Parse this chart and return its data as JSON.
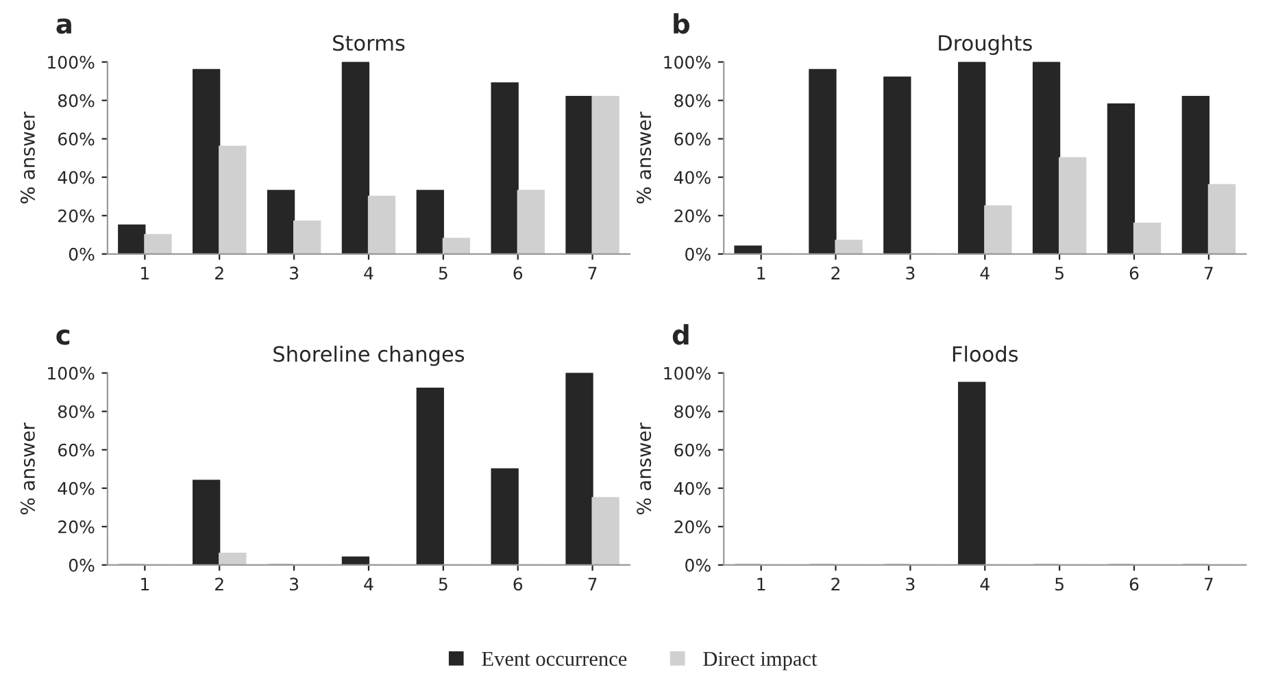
{
  "chart_data": [
    {
      "type": "bar",
      "title": "Storms",
      "ylabel": "% answer",
      "annotations": [
        "a"
      ],
      "categories": [
        "1",
        "2",
        "3",
        "4",
        "5",
        "6",
        "7"
      ],
      "series": [
        {
          "color": "#262626",
          "values": [
            15,
            96,
            33,
            100,
            33,
            89,
            82
          ]
        },
        {
          "color": "#d0d0d0",
          "values": [
            10,
            56,
            17,
            30,
            8,
            33,
            82
          ]
        }
      ],
      "ylim": [
        0,
        100
      ],
      "yticks": [
        {
          "value": 0,
          "label": "0%"
        },
        {
          "value": 20,
          "label": "20%"
        },
        {
          "value": 40,
          "label": "40%"
        },
        {
          "value": 60,
          "label": "60%"
        },
        {
          "value": 80,
          "label": "80%"
        },
        {
          "value": 100,
          "label": "100%"
        }
      ],
      "grid": false,
      "legend": false
    },
    {
      "type": "bar",
      "title": "Droughts",
      "ylabel": "% answer",
      "annotations": [
        "b"
      ],
      "categories": [
        "1",
        "2",
        "3",
        "4",
        "5",
        "6",
        "7"
      ],
      "series": [
        {
          "color": "#262626",
          "values": [
            4,
            96,
            92,
            100,
            100,
            78,
            82
          ]
        },
        {
          "color": "#d0d0d0",
          "values": [
            0,
            7,
            0,
            25,
            50,
            16,
            36
          ]
        }
      ],
      "ylim": [
        0,
        100
      ],
      "yticks": [
        {
          "value": 0,
          "label": "0%"
        },
        {
          "value": 20,
          "label": "20%"
        },
        {
          "value": 40,
          "label": "40%"
        },
        {
          "value": 60,
          "label": "60%"
        },
        {
          "value": 80,
          "label": "80%"
        },
        {
          "value": 100,
          "label": "100%"
        }
      ],
      "grid": false,
      "legend": false
    },
    {
      "type": "bar",
      "title": "Shoreline changes",
      "ylabel": "% answer",
      "annotations": [
        "c"
      ],
      "categories": [
        "1",
        "2",
        "3",
        "4",
        "5",
        "6",
        "7"
      ],
      "series": [
        {
          "color": "#262626",
          "values": [
            0,
            44,
            0,
            4,
            92,
            50,
            100
          ]
        },
        {
          "color": "#d0d0d0",
          "values": [
            0,
            6,
            0,
            0,
            0,
            0,
            35
          ]
        }
      ],
      "ylim": [
        0,
        100
      ],
      "yticks": [
        {
          "value": 0,
          "label": "0%"
        },
        {
          "value": 20,
          "label": "20%"
        },
        {
          "value": 40,
          "label": "40%"
        },
        {
          "value": 60,
          "label": "60%"
        },
        {
          "value": 80,
          "label": "80%"
        },
        {
          "value": 100,
          "label": "100%"
        }
      ],
      "grid": false,
      "legend": false
    },
    {
      "type": "bar",
      "title": "Floods",
      "ylabel": "% answer",
      "annotations": [
        "d"
      ],
      "categories": [
        "1",
        "2",
        "3",
        "4",
        "5",
        "6",
        "7"
      ],
      "series": [
        {
          "name": "Event occurrence",
          "color": "#262626",
          "values": [
            0,
            0,
            0,
            95,
            0,
            0,
            0
          ]
        },
        {
          "name": "Direct impact",
          "color": "#d0d0d0",
          "values": [
            0,
            0,
            0,
            0,
            0,
            0,
            0
          ]
        }
      ],
      "ylim": [
        0,
        100
      ],
      "yticks": [
        {
          "value": 0,
          "label": "0%"
        },
        {
          "value": 20,
          "label": "20%"
        },
        {
          "value": 40,
          "label": "40%"
        },
        {
          "value": 60,
          "label": "60%"
        },
        {
          "value": 80,
          "label": "80%"
        },
        {
          "value": 100,
          "label": "100%"
        }
      ],
      "grid": false,
      "legend": "bottom"
    }
  ]
}
